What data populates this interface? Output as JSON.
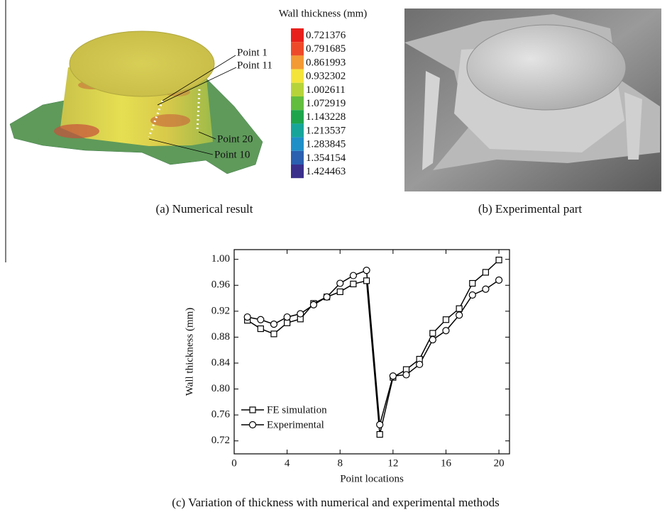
{
  "panel_a": {
    "caption": "(a) Numerical result",
    "annotations": [
      "Point 1",
      "Point 11",
      "Point 20",
      "Point 10"
    ],
    "colorbar": {
      "title": "Wall thickness (mm)",
      "levels": [
        0.721376,
        0.791685,
        0.861993,
        0.932302,
        1.002611,
        1.072919,
        1.143228,
        1.213537,
        1.283845,
        1.354154,
        1.424463
      ],
      "colors": [
        "#e8201c",
        "#ee4a2a",
        "#f39a34",
        "#f4e43a",
        "#b6d43a",
        "#62bd3e",
        "#1ea54c",
        "#17a59a",
        "#1f8fc8",
        "#2b5fb0",
        "#3b2f8c"
      ]
    }
  },
  "panel_b": {
    "caption": "(b) Experimental part"
  },
  "chart_data": {
    "type": "line",
    "caption": "(c) Variation of thickness with numerical and experimental methods",
    "x_label": "Point locations",
    "y_label": "Wall thickness (mm)",
    "x": [
      1,
      2,
      3,
      4,
      5,
      6,
      7,
      8,
      9,
      10,
      11,
      12,
      13,
      14,
      15,
      16,
      17,
      18,
      19,
      20
    ],
    "series": [
      {
        "name": "FE simulation",
        "color": "#000000",
        "marker": "square",
        "values": [
          0.906,
          0.893,
          0.885,
          0.902,
          0.908,
          0.932,
          0.942,
          0.95,
          0.962,
          0.967,
          0.73,
          0.818,
          0.83,
          0.846,
          0.886,
          0.907,
          0.924,
          0.963,
          0.98,
          0.999
        ]
      },
      {
        "name": "Experimental",
        "color": "#000000",
        "marker": "circle",
        "values": [
          0.911,
          0.907,
          0.9,
          0.911,
          0.916,
          0.93,
          0.942,
          0.963,
          0.975,
          0.983,
          0.745,
          0.82,
          0.822,
          0.838,
          0.876,
          0.89,
          0.914,
          0.945,
          0.954,
          0.968
        ]
      }
    ],
    "xlim": [
      0,
      20.8
    ],
    "xticks": [
      0,
      4,
      8,
      12,
      16,
      20
    ],
    "ylim": [
      0.7,
      1.015
    ],
    "yticks": [
      0.72,
      0.76,
      {
        "value": 0.8,
        "label": "0.80"
      },
      0.84,
      0.88,
      0.92,
      0.96,
      {
        "value": 1.0,
        "label": "1.00"
      }
    ],
    "legend": "lower-left"
  }
}
